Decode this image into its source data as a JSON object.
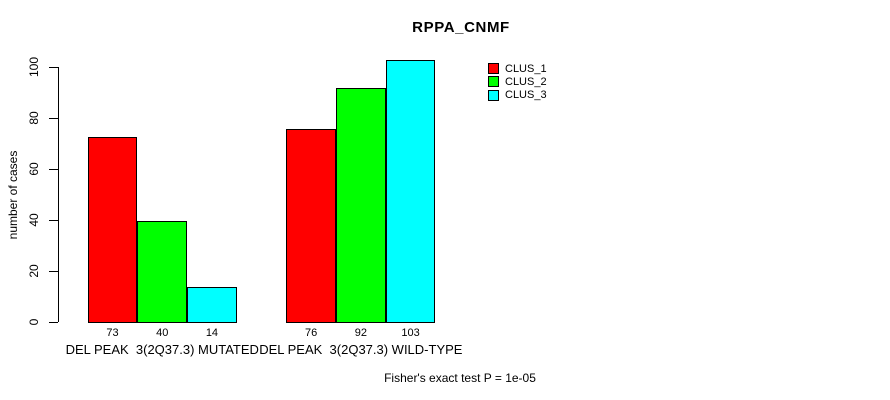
{
  "chart_data": {
    "type": "bar",
    "title": "RPPA_CNMF",
    "xlabel": "",
    "ylabel": "number of cases",
    "ylim": [
      0,
      100
    ],
    "yticks": [
      0,
      20,
      40,
      60,
      80,
      100
    ],
    "grid": false,
    "legend_position": "top-right",
    "bar_value_labels": true,
    "categories": [
      "DEL PEAK  3(2Q37.3) MUTATED",
      "DEL PEAK  3(2Q37.3) WILD-TYPE"
    ],
    "series": [
      {
        "name": "CLUS_1",
        "color": "#ff0000",
        "values": [
          73,
          76
        ]
      },
      {
        "name": "CLUS_2",
        "color": "#00ff00",
        "values": [
          40,
          92
        ]
      },
      {
        "name": "CLUS_3",
        "color": "#00ffff",
        "values": [
          14,
          103
        ]
      }
    ],
    "annotation": "Fisher's exact test P = 1e-05"
  }
}
